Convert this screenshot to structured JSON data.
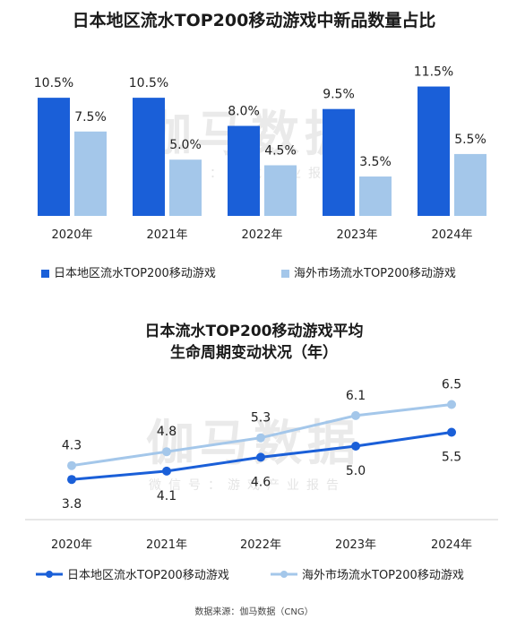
{
  "bar_chart_title": "日本地区流水TOP200移动游戏中新品数量占比",
  "line_chart_title_line1": "日本流水TOP200移动游戏平均",
  "line_chart_title_line2": "生命周期变动状况（年）",
  "watermark": {
    "main": "伽马数据",
    "sub": "微信号：游戏产业报告"
  },
  "source": "数据来源：伽马数据（CNG）",
  "colors": {
    "japan": "#1a5fd8",
    "overseas": "#a4c7ea"
  },
  "chart_data": [
    {
      "type": "bar",
      "title": "日本地区流水TOP200移动游戏中新品数量占比",
      "categories": [
        "2020年",
        "2021年",
        "2022年",
        "2023年",
        "2024年"
      ],
      "series": [
        {
          "name": "日本地区流水TOP200移动游戏",
          "values": [
            10.5,
            10.5,
            8.0,
            9.5,
            11.5
          ],
          "labels": [
            "10.5%",
            "10.5%",
            "8.0%",
            "9.5%",
            "11.5%"
          ]
        },
        {
          "name": "海外市场流水TOP200移动游戏",
          "values": [
            7.5,
            5.0,
            4.5,
            3.5,
            5.5
          ],
          "labels": [
            "7.5%",
            "5.0%",
            "4.5%",
            "3.5%",
            "5.5%"
          ]
        }
      ],
      "ylim": [
        0,
        12.5
      ]
    },
    {
      "type": "line",
      "title": "日本流水TOP200移动游戏平均生命周期变动状况（年）",
      "categories": [
        "2020年",
        "2021年",
        "2022年",
        "2023年",
        "2024年"
      ],
      "series": [
        {
          "name": "日本地区流水TOP200移动游戏",
          "values": [
            3.8,
            4.1,
            4.6,
            5.0,
            5.5
          ],
          "labels": [
            "3.8",
            "4.1",
            "4.6",
            "5.0",
            "5.5"
          ]
        },
        {
          "name": "海外市场流水TOP200移动游戏",
          "values": [
            4.3,
            4.8,
            5.3,
            6.1,
            6.5
          ],
          "labels": [
            "4.3",
            "4.8",
            "5.3",
            "6.1",
            "6.5"
          ]
        }
      ],
      "ylim": [
        0,
        8
      ]
    }
  ]
}
